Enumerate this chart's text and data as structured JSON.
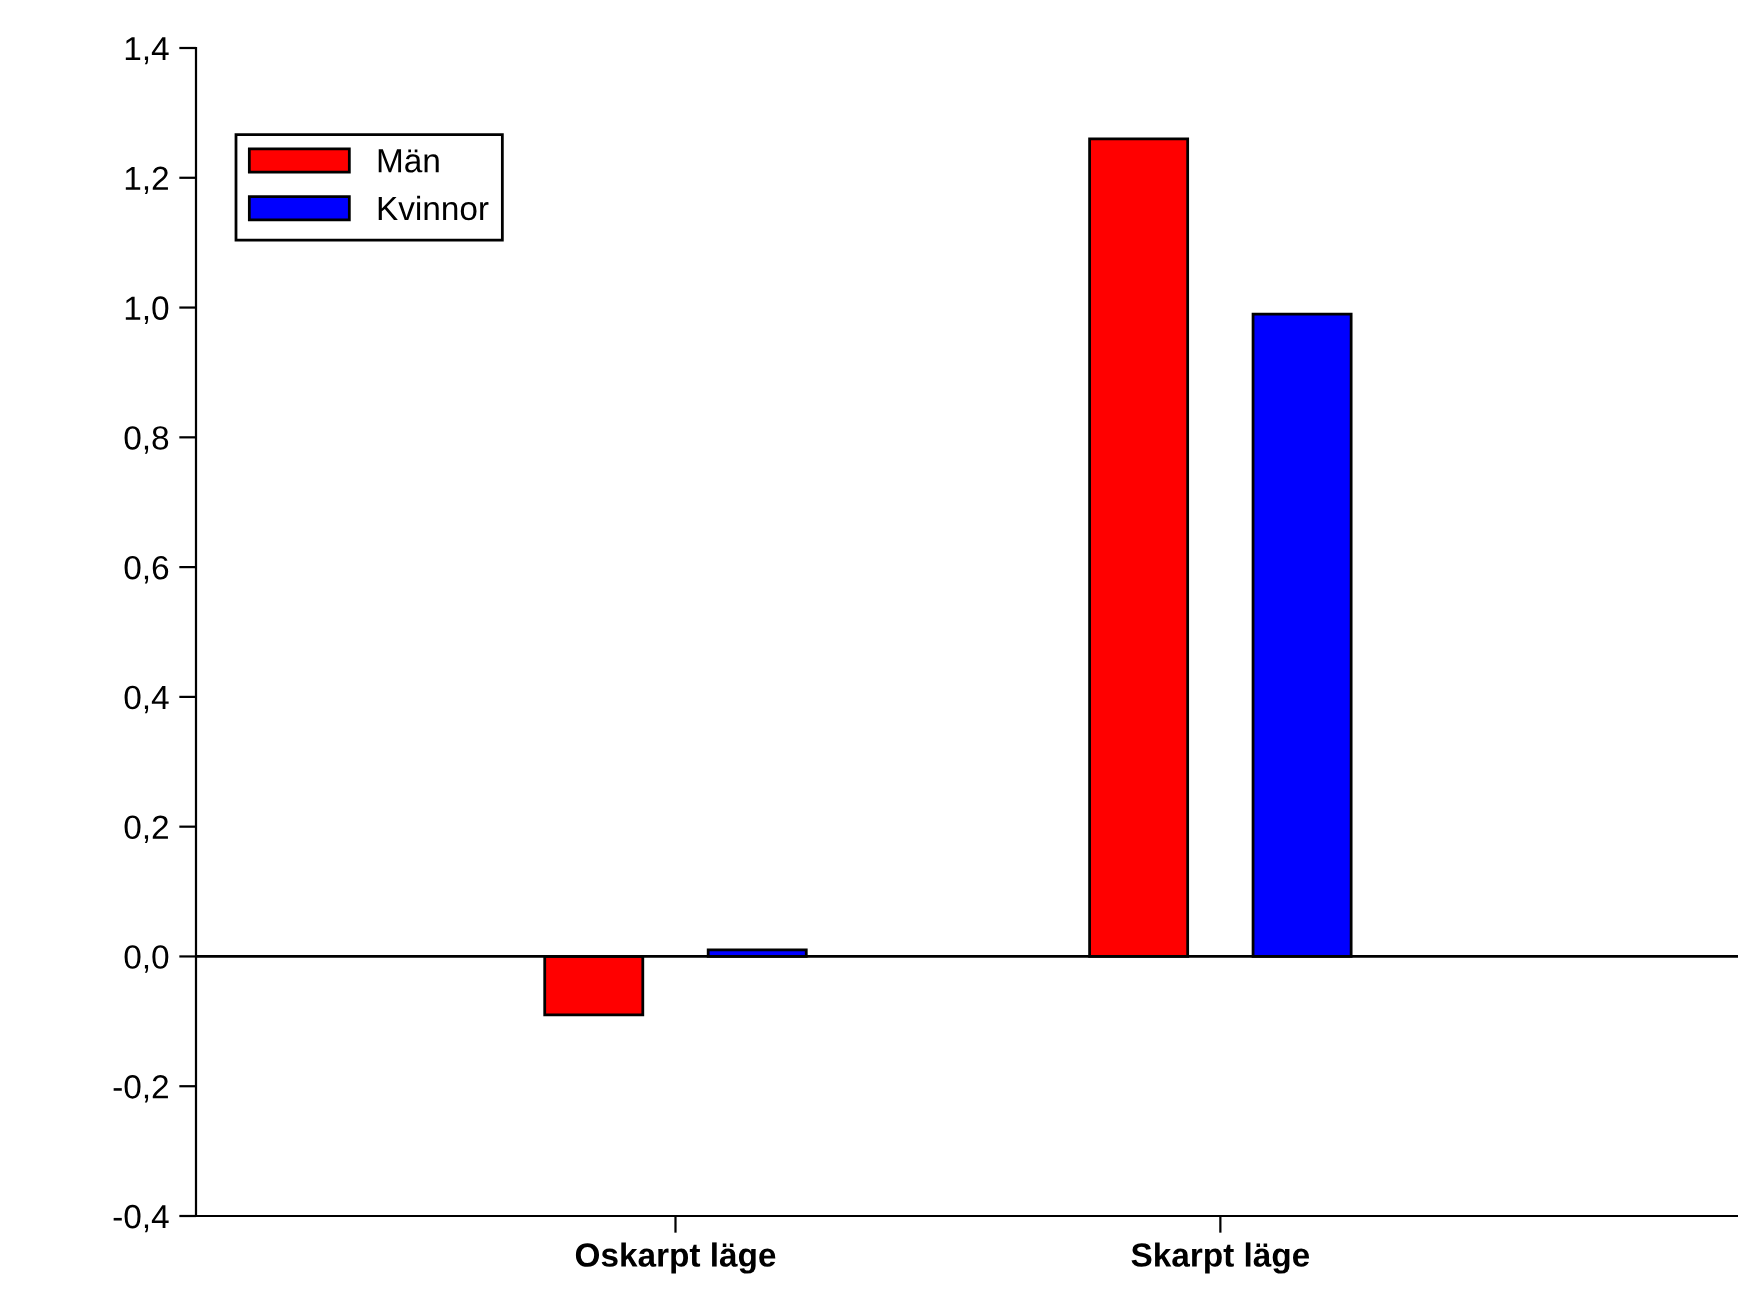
{
  "chart_data": {
    "type": "bar",
    "categories": [
      "Oskarpt läge",
      "Skarpt läge"
    ],
    "series": [
      {
        "name": "Män",
        "color": "#ff0000",
        "values": [
          -0.09,
          1.26
        ]
      },
      {
        "name": "Kvinnor",
        "color": "#0000ff",
        "values": [
          0.01,
          0.99
        ]
      }
    ],
    "ylim": [
      -0.4,
      1.4
    ],
    "yticks": [
      {
        "value": -0.4,
        "label": "-0,4"
      },
      {
        "value": -0.2,
        "label": "-0,2"
      },
      {
        "value": 0,
        "label": "0,0"
      },
      {
        "value": 0.2,
        "label": "0,2"
      },
      {
        "value": 0.4,
        "label": "0,4"
      },
      {
        "value": 0.6,
        "label": "0,6"
      },
      {
        "value": 0.8,
        "label": "0,8"
      },
      {
        "value": 1.0,
        "label": "1,0"
      },
      {
        "value": 1.2,
        "label": "1,2"
      },
      {
        "value": 1.4,
        "label": "1,4"
      }
    ],
    "ref_lines": [
      {
        "axis": "y",
        "value": 0,
        "color": "#000000"
      }
    ],
    "legend": "top left",
    "grid": false
  }
}
